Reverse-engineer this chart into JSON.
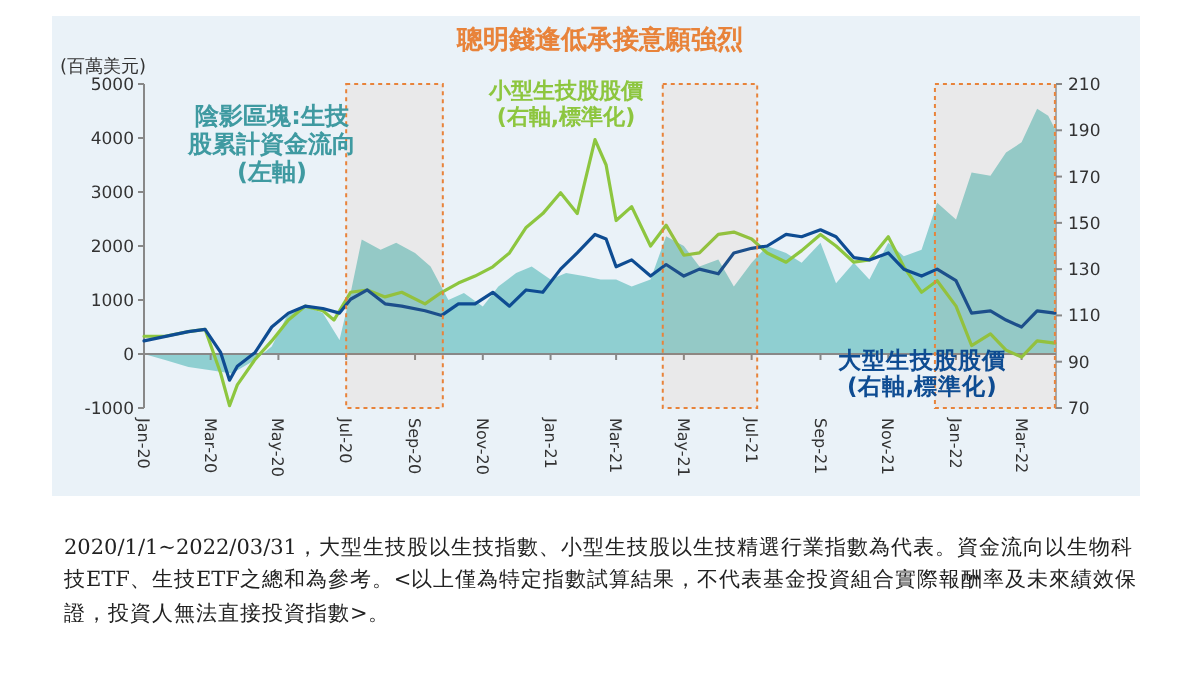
{
  "chart_data": {
    "type": "line",
    "title": "聰明錢逢低承接意願強烈",
    "ylabel": "(百萬美元)",
    "xlim": [
      "2020-01-01",
      "2022-04-01"
    ],
    "xticks": [
      {
        "value": "2020-01-01",
        "label": "Jan-20"
      },
      {
        "value": "2020-03-01",
        "label": "Mar-20"
      },
      {
        "value": "2020-05-01",
        "label": "May-20"
      },
      {
        "value": "2020-07-01",
        "label": "Jul-20"
      },
      {
        "value": "2020-09-01",
        "label": "Sep-20"
      },
      {
        "value": "2020-11-01",
        "label": "Nov-20"
      },
      {
        "value": "2021-01-01",
        "label": "Jan-21"
      },
      {
        "value": "2021-03-01",
        "label": "Mar-21"
      },
      {
        "value": "2021-05-01",
        "label": "May-21"
      },
      {
        "value": "2021-07-01",
        "label": "Jul-21"
      },
      {
        "value": "2021-09-01",
        "label": "Sep-21"
      },
      {
        "value": "2021-11-01",
        "label": "Nov-21"
      },
      {
        "value": "2022-01-01",
        "label": "Jan-22"
      },
      {
        "value": "2022-03-01",
        "label": "Mar-22"
      }
    ],
    "ylim": [
      -1000,
      5000
    ],
    "yticks": [
      -1000,
      0,
      1000,
      2000,
      3000,
      4000,
      5000
    ],
    "y2lim": [
      70,
      210
    ],
    "y2ticks": [
      70,
      90,
      110,
      130,
      150,
      170,
      190,
      210
    ],
    "bands": [
      {
        "axis": "x",
        "from": "2020-07-01",
        "to": "2020-09-26",
        "color": "#e8833a"
      },
      {
        "axis": "x",
        "from": "2021-04-12",
        "to": "2021-07-06",
        "color": "#e8833a"
      },
      {
        "axis": "x",
        "from": "2021-12-13",
        "to": "2022-03-31",
        "color": "#e8833a"
      }
    ],
    "series": [
      {
        "name": "陰影區塊:生技股累計資金流向(左軸)",
        "type": "area",
        "color": "#8fcfd1",
        "x": [
          "2020-01-01",
          "2020-01-20",
          "2020-02-10",
          "2020-03-01",
          "2020-03-20",
          "2020-04-10",
          "2020-04-25",
          "2020-05-10",
          "2020-05-25",
          "2020-06-10",
          "2020-06-25",
          "2020-07-05",
          "2020-07-15",
          "2020-08-01",
          "2020-08-15",
          "2020-09-01",
          "2020-09-15",
          "2020-10-01",
          "2020-10-15",
          "2020-11-01",
          "2020-11-15",
          "2020-12-01",
          "2020-12-15",
          "2021-01-01",
          "2021-01-15",
          "2021-02-01",
          "2021-02-15",
          "2021-03-01",
          "2021-03-15",
          "2021-04-01",
          "2021-04-15",
          "2021-05-01",
          "2021-05-15",
          "2021-06-01",
          "2021-06-15",
          "2021-07-01",
          "2021-07-15",
          "2021-08-01",
          "2021-08-15",
          "2021-09-01",
          "2021-09-15",
          "2021-10-01",
          "2021-10-15",
          "2021-11-01",
          "2021-11-15",
          "2021-12-01",
          "2021-12-15",
          "2022-01-01",
          "2022-01-15",
          "2022-02-01",
          "2022-02-15",
          "2022-03-01",
          "2022-03-15",
          "2022-03-25",
          "2022-03-31"
        ],
        "values": [
          0,
          -110,
          -240,
          -300,
          -360,
          -110,
          140,
          760,
          880,
          760,
          260,
          1130,
          2120,
          1930,
          2060,
          1870,
          1620,
          1000,
          1130,
          880,
          1250,
          1500,
          1620,
          1380,
          1500,
          1440,
          1380,
          1380,
          1250,
          1380,
          2180,
          2000,
          1620,
          1750,
          1250,
          1690,
          2000,
          1870,
          1690,
          2060,
          1310,
          1690,
          1380,
          2060,
          1810,
          1930,
          2800,
          2490,
          3360,
          3300,
          3730,
          3920,
          4540,
          4410,
          4170
        ]
      },
      {
        "name": "小型生技股股價(右軸,標準化)",
        "axis": "y2",
        "color": "#8dc63f",
        "x": [
          "2020-01-01",
          "2020-01-20",
          "2020-02-10",
          "2020-02-25",
          "2020-03-10",
          "2020-03-18",
          "2020-03-25",
          "2020-04-10",
          "2020-04-25",
          "2020-05-10",
          "2020-05-25",
          "2020-06-10",
          "2020-06-20",
          "2020-07-05",
          "2020-07-20",
          "2020-08-05",
          "2020-08-20",
          "2020-09-10",
          "2020-09-25",
          "2020-10-10",
          "2020-10-25",
          "2020-11-10",
          "2020-11-25",
          "2020-12-10",
          "2020-12-25",
          "2021-01-10",
          "2021-01-25",
          "2021-02-10",
          "2021-02-20",
          "2021-03-01",
          "2021-03-15",
          "2021-04-01",
          "2021-04-15",
          "2021-05-01",
          "2021-05-15",
          "2021-06-01",
          "2021-06-15",
          "2021-07-01",
          "2021-07-15",
          "2021-08-01",
          "2021-08-15",
          "2021-09-01",
          "2021-09-15",
          "2021-10-01",
          "2021-10-15",
          "2021-11-01",
          "2021-11-15",
          "2021-12-01",
          "2021-12-15",
          "2022-01-01",
          "2022-01-15",
          "2022-02-01",
          "2022-02-15",
          "2022-03-01",
          "2022-03-15",
          "2022-03-31"
        ],
        "values": [
          101,
          101,
          103,
          104,
          85,
          71,
          80,
          91,
          99,
          108,
          114,
          112,
          108,
          120,
          121,
          118,
          120,
          115,
          120,
          124,
          127,
          131,
          137,
          148,
          154,
          163,
          154,
          186,
          175,
          151,
          157,
          140,
          149,
          136,
          137,
          145,
          146,
          143,
          137,
          133,
          138,
          145,
          140,
          133,
          134,
          144,
          131,
          120,
          125,
          114,
          97,
          102,
          95,
          92,
          99,
          98
        ]
      },
      {
        "name": "大型生技股股價(右軸,標準化)",
        "axis": "y2",
        "color": "#0e4c92",
        "x": [
          "2020-01-01",
          "2020-02-10",
          "2020-02-25",
          "2020-03-10",
          "2020-03-18",
          "2020-03-25",
          "2020-04-10",
          "2020-04-25",
          "2020-05-10",
          "2020-05-25",
          "2020-06-10",
          "2020-06-25",
          "2020-07-05",
          "2020-07-20",
          "2020-08-05",
          "2020-08-20",
          "2020-09-10",
          "2020-09-25",
          "2020-10-10",
          "2020-10-25",
          "2020-11-10",
          "2020-11-25",
          "2020-12-10",
          "2020-12-25",
          "2021-01-10",
          "2021-01-25",
          "2021-02-10",
          "2021-02-20",
          "2021-03-01",
          "2021-03-15",
          "2021-04-01",
          "2021-04-15",
          "2021-05-01",
          "2021-05-15",
          "2021-06-01",
          "2021-06-15",
          "2021-07-01",
          "2021-07-15",
          "2021-08-01",
          "2021-08-15",
          "2021-09-01",
          "2021-09-15",
          "2021-10-01",
          "2021-10-15",
          "2021-11-01",
          "2021-11-15",
          "2021-12-01",
          "2021-12-15",
          "2022-01-01",
          "2022-01-15",
          "2022-02-01",
          "2022-02-15",
          "2022-03-01",
          "2022-03-15",
          "2022-03-31"
        ],
        "values": [
          99,
          103,
          104,
          94,
          82,
          88,
          94,
          105,
          111,
          114,
          113,
          111,
          117,
          121,
          115,
          114,
          112,
          110,
          115,
          115,
          120,
          114,
          121,
          120,
          130,
          137,
          145,
          143,
          131,
          134,
          127,
          132,
          127,
          130,
          128,
          137,
          139,
          140,
          145,
          144,
          147,
          144,
          135,
          134,
          137,
          130,
          127,
          130,
          125,
          111,
          112,
          108,
          105,
          112,
          111
        ]
      }
    ],
    "annotations": [
      "2020/1/1~2022/03/31，大型生技股以生技指數、小型生技股以生技精選行業指數為代表。資金流向以生物科技ETF、生技ETF之總和為參考。<以上僅為特定指數試算結果，不代表基金投資組合實際報酬率及未來績效保證，投資人無法直接投資指數>。"
    ]
  }
}
